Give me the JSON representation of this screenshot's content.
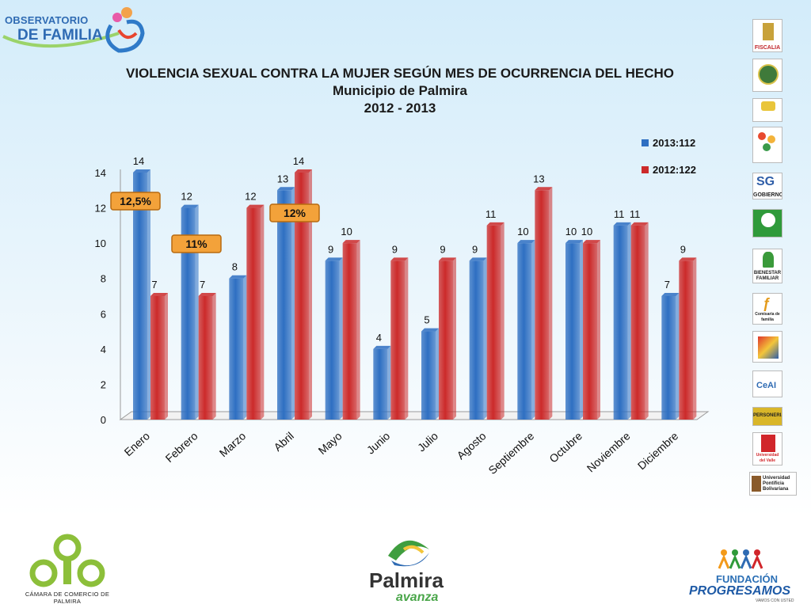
{
  "title": {
    "line1": "VIOLENCIA SEXUAL CONTRA LA MUJER SEGÚN MES DE OCURRENCIA DEL HECHO",
    "line2": "Municipio de Palmira",
    "line3": "2012 - 2013"
  },
  "chart_data": {
    "type": "bar",
    "categories": [
      "Enero",
      "Febrero",
      "Marzo",
      "Abril",
      "Mayo",
      "Junio",
      "Julio",
      "Agosto",
      "Septiembre",
      "Octubre",
      "Noviembre",
      "Diciembre"
    ],
    "series": [
      {
        "name": "2013:112",
        "values": [
          14,
          12,
          8,
          13,
          9,
          4,
          5,
          9,
          10,
          10,
          11,
          7
        ],
        "color": "#2e6fc2"
      },
      {
        "name": "2012:122",
        "values": [
          7,
          7,
          12,
          14,
          10,
          9,
          9,
          11,
          13,
          10,
          11,
          9
        ],
        "color": "#cc2a2a"
      }
    ],
    "ylim": [
      0,
      14
    ],
    "yticks": [
      0,
      2,
      4,
      6,
      8,
      10,
      12,
      14
    ],
    "legend": "top-right",
    "grid": false,
    "annotations": [
      {
        "text": "12,5%",
        "category": "Enero"
      },
      {
        "text": "11%",
        "category": "Febrero"
      },
      {
        "text": "12%",
        "category": "Abril"
      }
    ]
  },
  "logos": {
    "observatorio_line1": "OBSERVATORIO",
    "observatorio_line2_a": "DE ",
    "observatorio_line2_b": "FAMILIA",
    "fiscalia": "FISCALIA",
    "gobierno": "GOBIERNO",
    "bienestar": "BIENESTAR FAMILIAR",
    "comisaria": "Comisaría de familia",
    "personeria": "PERSONERIA",
    "univalle": "Universidad del Valle",
    "upb": "Universidad Pontificia Bolivariana",
    "camara": "CÁMARA DE COMERCIO DE PALMIRA",
    "palmira": "Palmira",
    "avanza": "avanza",
    "fundacion": "FUNDACIÓN",
    "progresamos": "PROGRESAMOS",
    "vamos": "VAMOS CON USTED"
  }
}
